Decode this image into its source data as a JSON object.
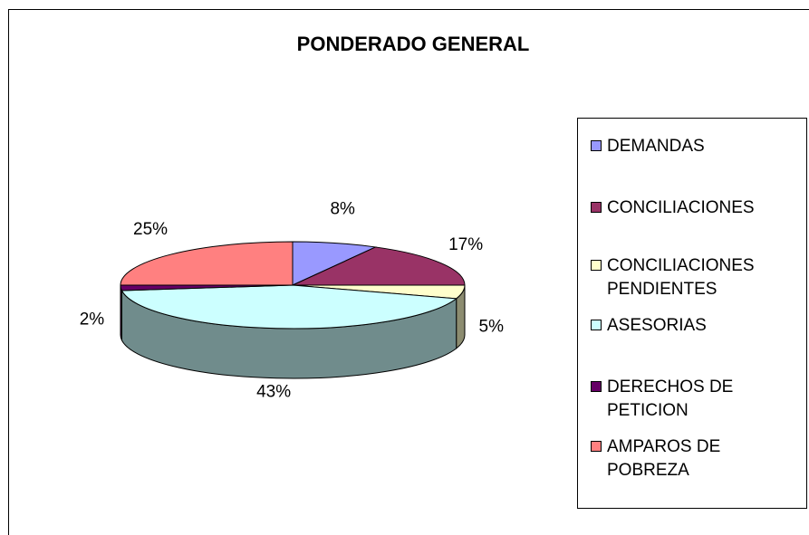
{
  "chart_data": {
    "type": "pie",
    "title": "PONDERADO GENERAL",
    "categories": [
      "DEMANDAS",
      "CONCILIACIONES",
      "CONCILIACIONES PENDIENTES",
      "ASESORIAS",
      "DERECHOS DE PETICION",
      "AMPAROS DE POBREZA"
    ],
    "values": [
      8,
      17,
      5,
      43,
      2,
      25
    ],
    "value_labels": [
      "8%",
      "17%",
      "5%",
      "43%",
      "2%",
      "25%"
    ],
    "colors": [
      "#9999ff",
      "#993366",
      "#ffffcc",
      "#ccffff",
      "#660066",
      "#ff8080"
    ],
    "legend": "right"
  }
}
